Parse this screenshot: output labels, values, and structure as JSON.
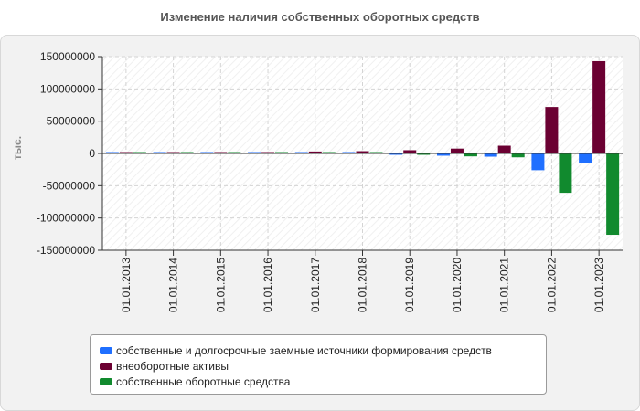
{
  "chart_data": {
    "type": "bar",
    "title": "Изменение наличия собственных оборотных средств",
    "ylabel": "тыс.",
    "xlabel": "",
    "ylim": [
      -150000000,
      150000000
    ],
    "yticks": [
      150000000,
      100000000,
      50000000,
      0,
      -50000000,
      -100000000,
      -150000000
    ],
    "grid": true,
    "legend_position": "bottom",
    "categories": [
      "01.01.2013",
      "01.01.2014",
      "01.01.2015",
      "01.01.2016",
      "01.01.2017",
      "01.01.2018",
      "01.01.2019",
      "01.01.2020",
      "01.01.2021",
      "01.01.2022",
      "01.01.2023"
    ],
    "series": [
      {
        "name": "собственные и долгосрочные заемные источники формирования средств",
        "color": "#1f6fff",
        "values": [
          1500000,
          1500000,
          1500000,
          1500000,
          1500000,
          1500000,
          -2000000,
          -3500000,
          -5000000,
          -26000000,
          -15000000
        ]
      },
      {
        "name": "внеоборотные активы",
        "color": "#6b0032",
        "values": [
          2000000,
          2000000,
          2000000,
          2000000,
          3000000,
          3500000,
          5000000,
          7500000,
          12000000,
          72000000,
          143000000
        ]
      },
      {
        "name": "собственные оборотные средства",
        "color": "#118a2e",
        "values": [
          1500000,
          1500000,
          1500000,
          1500000,
          1500000,
          1500000,
          -2000000,
          -4500000,
          -6000000,
          -61000000,
          -126000000
        ]
      }
    ]
  }
}
